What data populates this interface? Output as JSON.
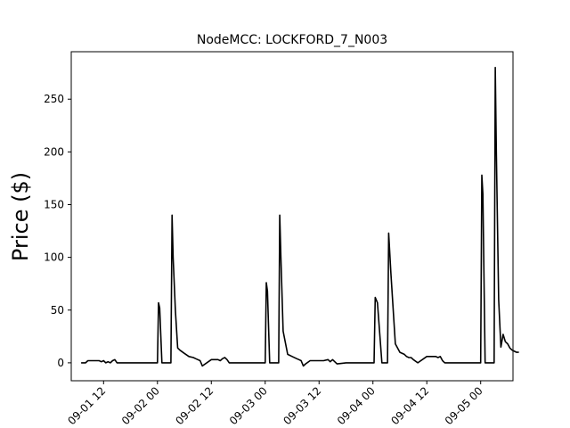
{
  "chart_data": {
    "type": "line",
    "title": "NodeMCC: LOCKFORD_7_N003",
    "xlabel": "",
    "ylabel": "Price ($)",
    "xlim": [
      "2025-09-01 04:48",
      "2025-09-05 07:12"
    ],
    "ylim": [
      -17,
      295
    ],
    "y_ticks": [
      0,
      50,
      100,
      150,
      200,
      250
    ],
    "x_ticks": [
      "2025-09-01 12:00",
      "2025-09-02 00:00",
      "2025-09-02 12:00",
      "2025-09-03 00:00",
      "2025-09-03 12:00",
      "2025-09-04 00:00",
      "2025-09-04 12:00",
      "2025-09-05 00:00"
    ],
    "x_tick_labels": [
      "09-01 12",
      "09-02 00",
      "09-02 12",
      "09-03 00",
      "09-03 12",
      "09-04 00",
      "09-04 12",
      "09-05 00"
    ],
    "grid": false,
    "series": [
      {
        "color": "#000000",
        "x": [
          "2025-09-01 07:00",
          "2025-09-01 08:00",
          "2025-09-01 08:30",
          "2025-09-01 10:00",
          "2025-09-01 11:00",
          "2025-09-01 11:30",
          "2025-09-01 12:00",
          "2025-09-01 12:30",
          "2025-09-01 13:00",
          "2025-09-01 13:30",
          "2025-09-01 14:00",
          "2025-09-01 14:30",
          "2025-09-01 15:00",
          "2025-09-01 16:00",
          "2025-09-01 18:00",
          "2025-09-01 20:00",
          "2025-09-01 22:00",
          "2025-09-01 23:30",
          "2025-09-02 00:00",
          "2025-09-02 00:15",
          "2025-09-02 00:30",
          "2025-09-02 01:00",
          "2025-09-02 02:00",
          "2025-09-02 02:30",
          "2025-09-02 03:00",
          "2025-09-02 03:15",
          "2025-09-02 03:30",
          "2025-09-02 04:00",
          "2025-09-02 04:30",
          "2025-09-02 05:00",
          "2025-09-02 06:00",
          "2025-09-02 07:00",
          "2025-09-02 08:00",
          "2025-09-02 08:30",
          "2025-09-02 09:00",
          "2025-09-02 09:30",
          "2025-09-02 10:00",
          "2025-09-02 12:00",
          "2025-09-02 13:00",
          "2025-09-02 13:30",
          "2025-09-02 14:00",
          "2025-09-02 14:30",
          "2025-09-02 15:00",
          "2025-09-02 15:30",
          "2025-09-02 16:00",
          "2025-09-02 18:00",
          "2025-09-02 20:00",
          "2025-09-02 22:00",
          "2025-09-02 23:30",
          "2025-09-03 00:00",
          "2025-09-03 00:15",
          "2025-09-03 00:30",
          "2025-09-03 01:00",
          "2025-09-03 02:00",
          "2025-09-03 02:30",
          "2025-09-03 03:00",
          "2025-09-03 03:15",
          "2025-09-03 03:30",
          "2025-09-03 04:00",
          "2025-09-03 05:00",
          "2025-09-03 06:00",
          "2025-09-03 07:00",
          "2025-09-03 07:30",
          "2025-09-03 08:00",
          "2025-09-03 08:30",
          "2025-09-03 09:00",
          "2025-09-03 10:00",
          "2025-09-03 12:00",
          "2025-09-03 13:00",
          "2025-09-03 14:00",
          "2025-09-03 14:30",
          "2025-09-03 15:00",
          "2025-09-03 16:00",
          "2025-09-03 18:00",
          "2025-09-03 20:00",
          "2025-09-03 22:00",
          "2025-09-03 23:30",
          "2025-09-04 00:00",
          "2025-09-04 00:15",
          "2025-09-04 00:30",
          "2025-09-04 01:00",
          "2025-09-04 02:00",
          "2025-09-04 02:30",
          "2025-09-04 03:00",
          "2025-09-04 03:15",
          "2025-09-04 03:30",
          "2025-09-04 04:00",
          "2025-09-04 05:00",
          "2025-09-04 06:00",
          "2025-09-04 07:00",
          "2025-09-04 07:30",
          "2025-09-04 08:00",
          "2025-09-04 08:30",
          "2025-09-04 09:00",
          "2025-09-04 10:00",
          "2025-09-04 12:00",
          "2025-09-04 13:00",
          "2025-09-04 13:30",
          "2025-09-04 14:00",
          "2025-09-04 14:30",
          "2025-09-04 15:00",
          "2025-09-04 15:30",
          "2025-09-04 16:00",
          "2025-09-04 18:00",
          "2025-09-04 20:00",
          "2025-09-04 22:00",
          "2025-09-04 23:30",
          "2025-09-05 00:00",
          "2025-09-05 00:15",
          "2025-09-05 00:30",
          "2025-09-05 01:00",
          "2025-09-05 02:00",
          "2025-09-05 02:30",
          "2025-09-05 03:00",
          "2025-09-05 03:15",
          "2025-09-05 03:30",
          "2025-09-05 04:00",
          "2025-09-05 04:30",
          "2025-09-05 05:00",
          "2025-09-05 05:30",
          "2025-09-05 06:00",
          "2025-09-05 06:30",
          "2025-09-05 07:00",
          "2025-09-05 07:30",
          "2025-09-05 08:00",
          "2025-09-05 08:30"
        ],
        "y": [
          0,
          0,
          2,
          2,
          2,
          1,
          2,
          0,
          1,
          0,
          2,
          3,
          0,
          0,
          0,
          0,
          0,
          0,
          0,
          57,
          52,
          0,
          0,
          0,
          0,
          140,
          100,
          50,
          14,
          12,
          9,
          6,
          5,
          4,
          3,
          2,
          -3,
          3,
          3,
          3,
          2,
          4,
          5,
          3,
          0,
          0,
          0,
          0,
          0,
          0,
          76,
          68,
          0,
          0,
          0,
          0,
          140,
          100,
          30,
          8,
          6,
          4,
          3,
          2,
          -3,
          -1,
          2,
          2,
          2,
          3,
          1,
          3,
          -1,
          0,
          0,
          0,
          0,
          0,
          0,
          62,
          57,
          0,
          0,
          0,
          0,
          123,
          85,
          18,
          10,
          8,
          6,
          5,
          5,
          3,
          0,
          6,
          6,
          6,
          6,
          5,
          6,
          2,
          0,
          0,
          0,
          0,
          0,
          0,
          178,
          160,
          0,
          0,
          0,
          0,
          280,
          200,
          60,
          15,
          27,
          20,
          18,
          14,
          12,
          11,
          10,
          10
        ]
      }
    ]
  }
}
